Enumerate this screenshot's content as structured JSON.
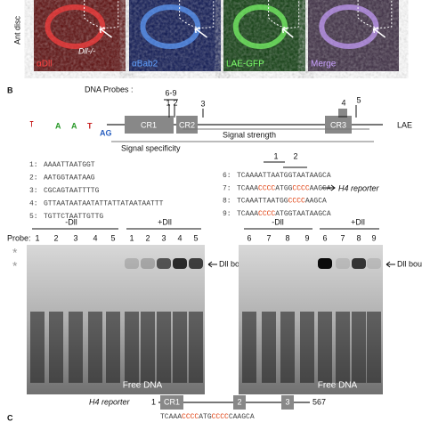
{
  "top_panels": {
    "row_label": "Ant disc",
    "panels": [
      {
        "label": "αDll",
        "color": "#ff4040",
        "bg": "#5a0a0a"
      },
      {
        "label": "αBab2",
        "color": "#5fa0ff",
        "bg": "#0a1450"
      },
      {
        "label": "LAE-GFP",
        "color": "#7cff6a",
        "bg": "#0c3a0c"
      },
      {
        "label": "Merge",
        "color": "#c9a0ff",
        "bg": "#3a2a40"
      }
    ],
    "mutant_label": "Dll-/-"
  },
  "panel_b": {
    "letter": "B",
    "probes_label": "DNA Probes :",
    "probe_marks": [
      "6-9",
      "1",
      "2",
      "3",
      "4",
      "5"
    ],
    "elements": [
      "CR1",
      "CR2",
      "CR3"
    ],
    "gene": "LAE",
    "signal_specificity": "Signal specificity",
    "signal_strength": "Signal strength",
    "sequences_left": [
      {
        "num": "1:",
        "parts": [
          {
            "text": "AAAATTAATGGT"
          }
        ]
      },
      {
        "num": "2:",
        "parts": [
          {
            "text": "AATGGTAATAAG"
          }
        ]
      },
      {
        "num": "3:",
        "parts": [
          {
            "text": "CGCAGTAATTTTG"
          }
        ]
      },
      {
        "num": "4:",
        "parts": [
          {
            "text": "GTTAATAATAATATTATTATAATAATTT"
          }
        ]
      },
      {
        "num": "5:",
        "parts": [
          {
            "text": "TGTTCTAATTGTTG"
          }
        ]
      }
    ],
    "site_labels": [
      "1",
      "2"
    ],
    "sequences_right": [
      {
        "num": "6:",
        "parts": [
          {
            "text": "TCAAAATTAATGGTAATAAGCA"
          }
        ]
      },
      {
        "num": "7:",
        "parts": [
          {
            "text": "TCAAA"
          },
          {
            "text": "CCCC",
            "color": "#e04010"
          },
          {
            "text": "ATGG"
          },
          {
            "text": "CCCC",
            "color": "#e04010"
          },
          {
            "text": "AAGCA"
          }
        ]
      },
      {
        "num": "8:",
        "parts": [
          {
            "text": "TCAAATTAATGG"
          },
          {
            "text": "CCCC",
            "color": "#e04010"
          },
          {
            "text": "AAGCA"
          }
        ]
      },
      {
        "num": "9:",
        "parts": [
          {
            "text": "TCAAA"
          },
          {
            "text": "CCCC",
            "color": "#e04010"
          },
          {
            "text": "ATGGTAATAAGCA"
          }
        ]
      }
    ],
    "reporter_arrow": "H4 reporter",
    "gel_left": {
      "minus": "-Dll",
      "plus": "+Dll",
      "probe_label": "Probe:",
      "lanes": [
        "1",
        "2",
        "3",
        "4",
        "5",
        "1",
        "2",
        "3",
        "4",
        "5"
      ],
      "bound": "Dll bound DNA",
      "free": "Free DNA",
      "stars": [
        "*",
        "*"
      ]
    },
    "gel_right": {
      "minus": "-Dll",
      "plus": "+Dll",
      "lanes": [
        "6",
        "7",
        "8",
        "9",
        "6",
        "7",
        "8",
        "9"
      ],
      "bound": "Dll bound DNA",
      "free": "Free DNA"
    }
  },
  "panel_c_header": {
    "reporter": "H4 reporter",
    "start": "1",
    "boxes": [
      "CR1",
      "2",
      "3"
    ],
    "end": "567",
    "letter": "C",
    "sequence": [
      {
        "text": "TCAAA"
      },
      {
        "text": "CCCC",
        "color": "#e04010"
      },
      {
        "text": "ATG"
      },
      {
        "text": "CCCC",
        "color": "#e04010"
      },
      {
        "text": "CAAGCA"
      }
    ]
  }
}
